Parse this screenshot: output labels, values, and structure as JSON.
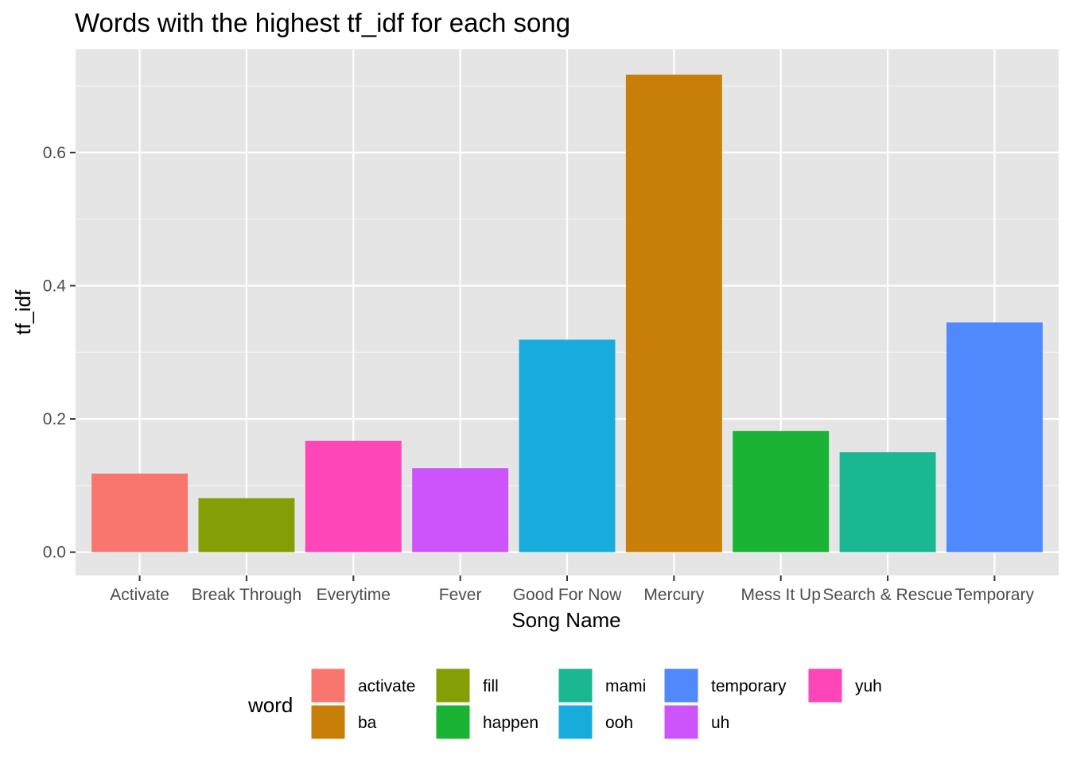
{
  "chart_data": {
    "type": "bar",
    "title": "Words with the highest tf_idf for each song",
    "xlabel": "Song Name",
    "ylabel": "tf_idf",
    "categories": [
      "Activate",
      "Break Through",
      "Everytime",
      "Fever",
      "Good For Now",
      "Mercury",
      "Mess It Up",
      "Search & Rescue",
      "Temporary"
    ],
    "values": [
      0.118,
      0.081,
      0.167,
      0.126,
      0.319,
      0.717,
      0.182,
      0.15,
      0.345
    ],
    "bar_words": [
      "activate",
      "fill",
      "yuh",
      "uh",
      "ooh",
      "ba",
      "happen",
      "mami",
      "temporary"
    ],
    "ylim": [
      -0.035,
      0.755
    ],
    "yticks": [
      0.0,
      0.2,
      0.4,
      0.6
    ],
    "ytick_labels": [
      "0.0",
      "0.2",
      "0.4",
      "0.6"
    ],
    "grid": true,
    "background": "#e5e5e5",
    "legend": {
      "title": "word",
      "position": "bottom",
      "entries": [
        {
          "label": "activate",
          "color": "#f8766d"
        },
        {
          "label": "ba",
          "color": "#c77f07"
        },
        {
          "label": "fill",
          "color": "#849f05"
        },
        {
          "label": "happen",
          "color": "#1ab333"
        },
        {
          "label": "mami",
          "color": "#1ab792"
        },
        {
          "label": "ooh",
          "color": "#17acdc"
        },
        {
          "label": "temporary",
          "color": "#5088fd"
        },
        {
          "label": "uh",
          "color": "#cd54fb"
        },
        {
          "label": "yuh",
          "color": "#fe46b8"
        }
      ]
    }
  }
}
